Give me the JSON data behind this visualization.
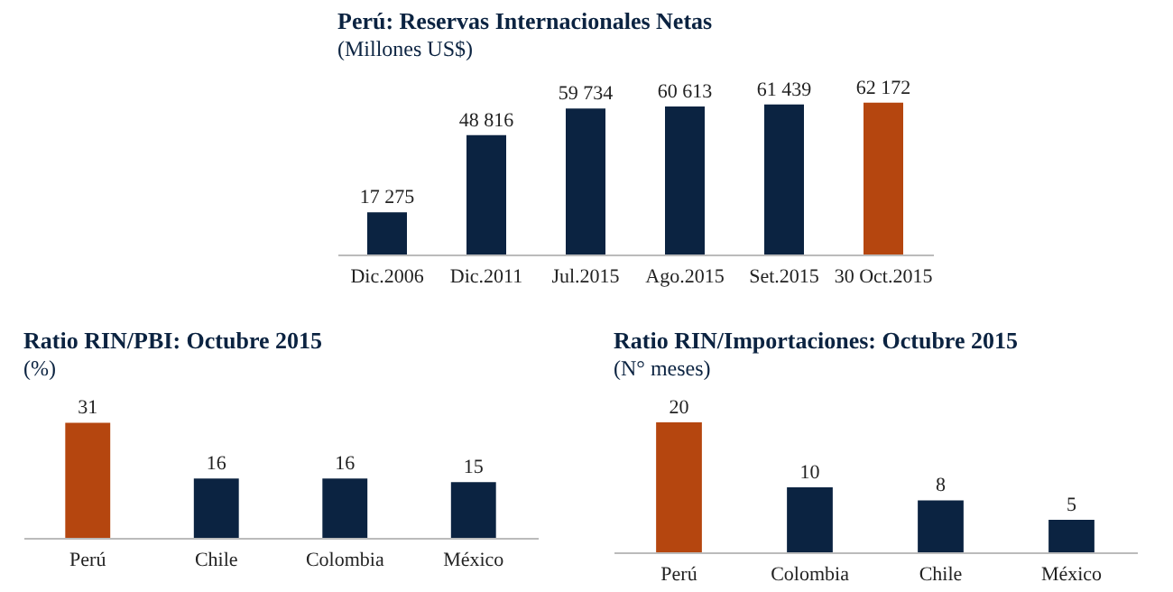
{
  "chart_data": [
    {
      "type": "bar",
      "title": "Perú: Reservas Internacionales Netas",
      "subtitle": "(Millones US$)",
      "categories": [
        "Dic.2006",
        "Dic.2011",
        "Jul.2015",
        "Ago.2015",
        "Set.2015",
        "30 Oct.2015"
      ],
      "values": [
        17275,
        48816,
        59734,
        60613,
        61439,
        62172
      ],
      "value_labels": [
        "17 275",
        "48 816",
        "59 734",
        "60 613",
        "61 439",
        "62 172"
      ],
      "colors": [
        "#0b2341",
        "#0b2341",
        "#0b2341",
        "#0b2341",
        "#0b2341",
        "#b5460f"
      ]
    },
    {
      "type": "bar",
      "title": "Ratio RIN/PBI: Octubre 2015",
      "subtitle": "(%)",
      "categories": [
        "Perú",
        "Chile",
        "Colombia",
        "México"
      ],
      "values": [
        31,
        16,
        16,
        15
      ],
      "data_labels": true,
      "colors": [
        "#b5460f",
        "#0b2341",
        "#0b2341",
        "#0b2341"
      ]
    },
    {
      "type": "bar",
      "title": "Ratio RIN/Importaciones: Octubre 2015",
      "subtitle": "(N° meses)",
      "categories": [
        "Perú",
        "Colombia",
        "Chile",
        "México"
      ],
      "values": [
        20,
        10,
        8,
        5
      ],
      "data_labels": true,
      "colors": [
        "#b5460f",
        "#0b2341",
        "#0b2341",
        "#0b2341"
      ]
    }
  ]
}
